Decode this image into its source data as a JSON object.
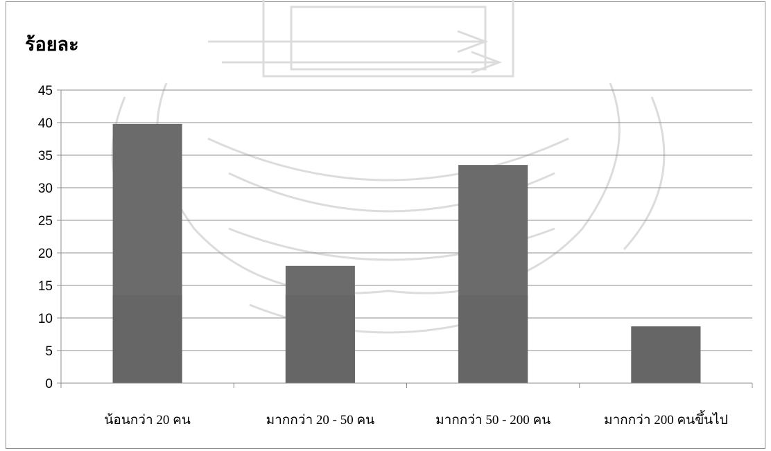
{
  "chart_data": {
    "type": "bar",
    "ylabel": "ร้อยละ",
    "xlabel": "",
    "categories": [
      "น้อนกว่า 20 คน",
      "มากกว่า 20 - 50 คน",
      "มากกว่า 50 - 200 คน",
      "มากกว่า 200 คนขึ้นไป"
    ],
    "values": [
      39.8,
      18.0,
      33.5,
      8.7
    ],
    "ylim": [
      0,
      45
    ],
    "yticks": [
      0,
      5,
      10,
      15,
      20,
      25,
      30,
      35,
      40,
      45
    ],
    "grid": true,
    "legend": "none",
    "bar_color": "#6b6b6b",
    "bar_lower_color": "#666666",
    "gridline_color": "#8c8c8c"
  }
}
